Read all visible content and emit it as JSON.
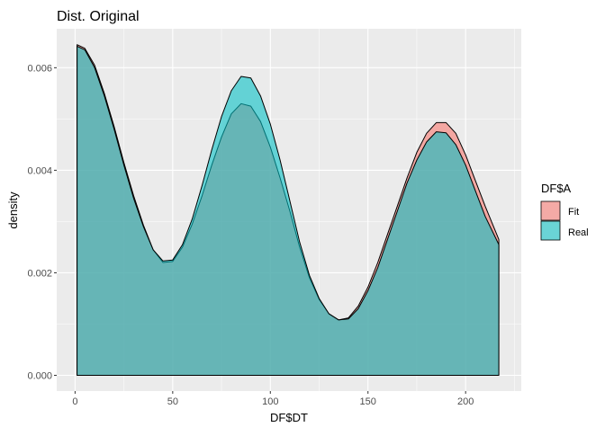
{
  "chart_data": {
    "type": "area",
    "title": "Dist. Original",
    "xlabel": "DF$DT",
    "ylabel": "density",
    "xlim": [
      -9.4,
      228.5
    ],
    "ylim": [
      -0.000307,
      0.00676
    ],
    "x_ticks": [
      0,
      50,
      100,
      150,
      200
    ],
    "x_tick_labels": [
      "0",
      "50",
      "100",
      "150",
      "200"
    ],
    "y_ticks": [
      0,
      0.002,
      0.004,
      0.006
    ],
    "y_tick_labels": [
      "0.000",
      "0.002",
      "0.004",
      "0.006"
    ],
    "grid": true,
    "legend": {
      "title": "DF$A",
      "placement": "right",
      "entries": [
        "Fit",
        "Real"
      ]
    },
    "colors": {
      "Fit": "#F8766D",
      "Real": "#00BFC4",
      "panel": "#EBEBEB"
    },
    "x": [
      1,
      5,
      10,
      15,
      20,
      25,
      30,
      35,
      40,
      45,
      50,
      55,
      60,
      65,
      70,
      75,
      80,
      85,
      90,
      95,
      100,
      105,
      110,
      115,
      120,
      125,
      130,
      135,
      140,
      145,
      150,
      155,
      160,
      165,
      170,
      175,
      180,
      185,
      190,
      195,
      200,
      205,
      210,
      217
    ],
    "series": [
      {
        "name": "Fit",
        "values": [
          0.00645,
          0.00638,
          0.00605,
          0.0055,
          0.00485,
          0.00415,
          0.0035,
          0.00293,
          0.00245,
          0.0022,
          0.00222,
          0.0025,
          0.00295,
          0.0035,
          0.0041,
          0.00465,
          0.0051,
          0.0053,
          0.00525,
          0.00495,
          0.00445,
          0.00385,
          0.0032,
          0.0025,
          0.0019,
          0.00148,
          0.0012,
          0.00108,
          0.00112,
          0.00135,
          0.00172,
          0.0022,
          0.00275,
          0.0033,
          0.00385,
          0.00435,
          0.00472,
          0.00493,
          0.00493,
          0.00472,
          0.0043,
          0.0038,
          0.0033,
          0.00265
        ]
      },
      {
        "name": "Real",
        "values": [
          0.00642,
          0.00635,
          0.006,
          0.00545,
          0.0048,
          0.0041,
          0.00345,
          0.0029,
          0.00245,
          0.00223,
          0.00225,
          0.00255,
          0.00305,
          0.0037,
          0.0044,
          0.00505,
          0.00555,
          0.00583,
          0.0058,
          0.00545,
          0.0049,
          0.0042,
          0.0034,
          0.0026,
          0.00195,
          0.0015,
          0.0012,
          0.00108,
          0.0011,
          0.0013,
          0.00165,
          0.0021,
          0.00265,
          0.0032,
          0.00375,
          0.0042,
          0.00455,
          0.00475,
          0.00473,
          0.0045,
          0.0041,
          0.0036,
          0.0031,
          0.00255
        ]
      }
    ]
  }
}
